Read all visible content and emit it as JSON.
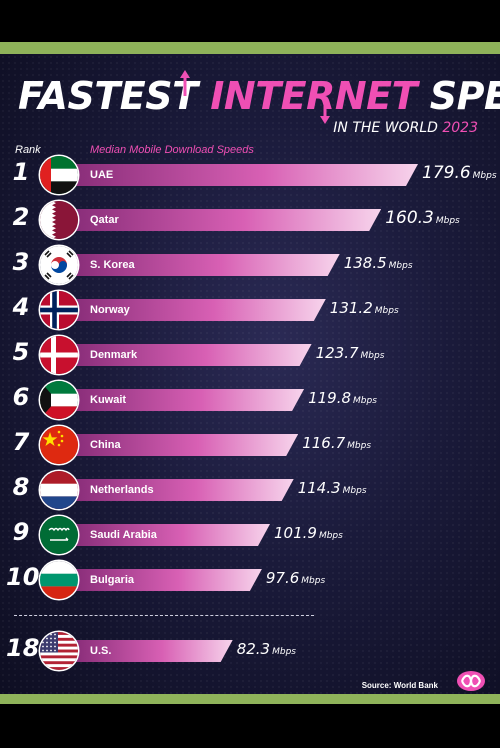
{
  "header": {
    "title_words": [
      "FASTEST",
      "INTERNET",
      "SPEEDS"
    ],
    "subtitle_prefix": "IN THE WORLD",
    "subtitle_year": "2023",
    "rank_label": "Rank",
    "metric_label": "Median Mobile Download Speeds"
  },
  "chart_data": {
    "type": "bar",
    "orientation": "horizontal",
    "title": "FASTEST INTERNET SPEEDS",
    "subtitle": "IN THE WORLD 2023",
    "unit": "Mbps",
    "ranks": [
      "1",
      "2",
      "3",
      "4",
      "5",
      "6",
      "7",
      "8",
      "9",
      "10",
      "18"
    ],
    "categories": [
      "UAE",
      "Qatar",
      "S. Korea",
      "Norway",
      "Denmark",
      "Kuwait",
      "China",
      "Netherlands",
      "Saudi Arabia",
      "Bulgaria",
      "U.S."
    ],
    "values": [
      179.6,
      160.3,
      138.5,
      131.2,
      123.7,
      119.8,
      116.7,
      114.3,
      101.9,
      97.6,
      82.3
    ],
    "value_labels": [
      "179.6",
      "160.3",
      "138.5",
      "131.2",
      "123.7",
      "119.8",
      "116.7",
      "114.3",
      "101.9",
      "97.6",
      "82.3"
    ],
    "flags": [
      "uae-flag",
      "qatar-flag",
      "south-korea-flag",
      "norway-flag",
      "denmark-flag",
      "kuwait-flag",
      "china-flag",
      "netherlands-flag",
      "saudi-arabia-flag",
      "bulgaria-flag",
      "usa-flag"
    ],
    "bar_color": "#d860b4",
    "bar_highlight": "#f7d4ec"
  },
  "footer": {
    "source": "Source: World Bank"
  },
  "colors": {
    "accent": "#ef4fb4",
    "frame_green": "#8fb35a",
    "background": "#1a1a3a"
  }
}
